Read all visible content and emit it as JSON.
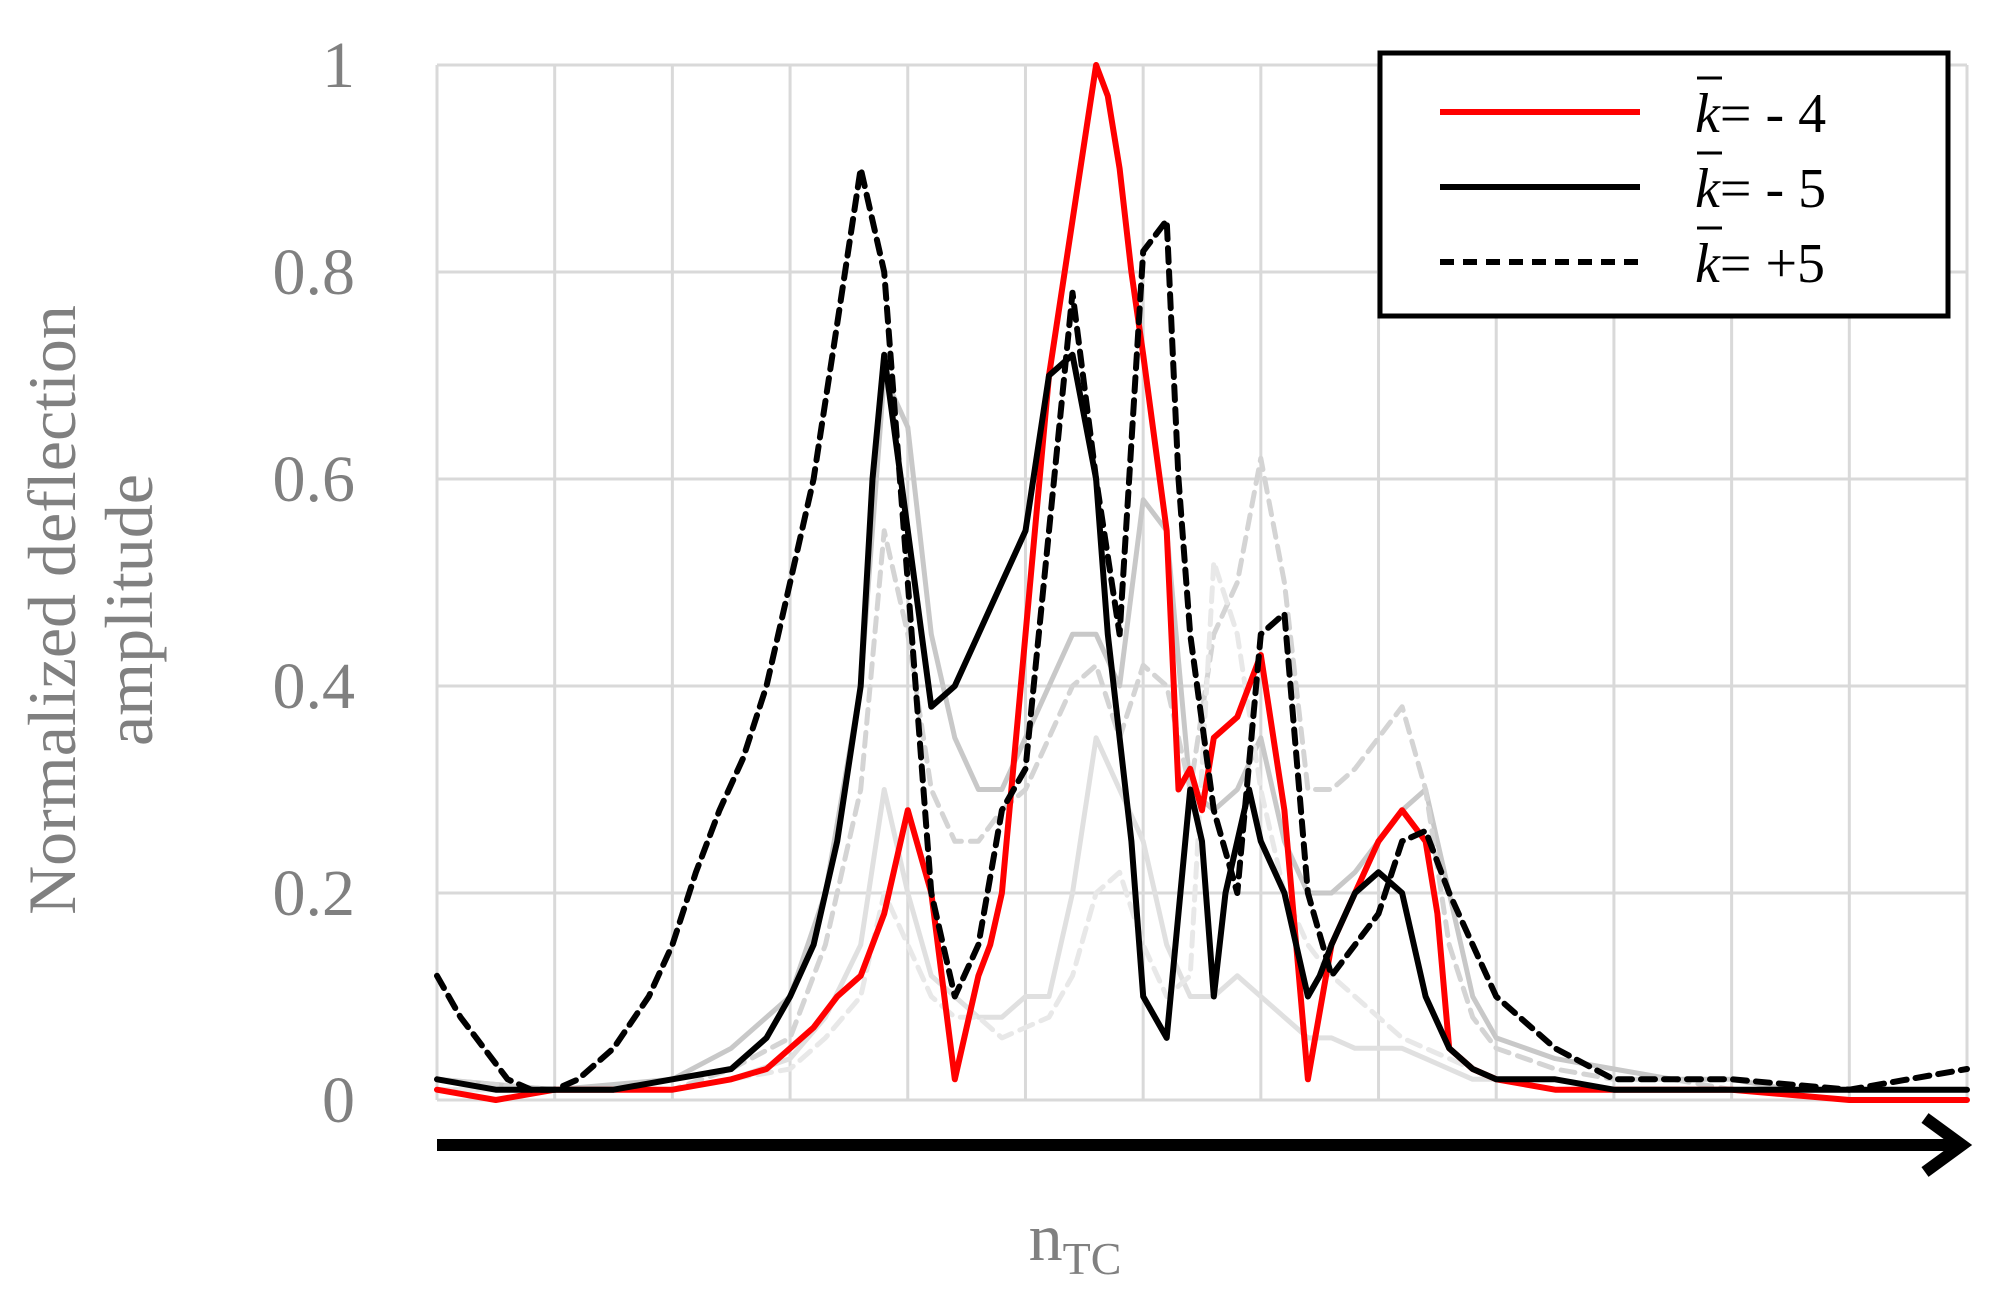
{
  "chart_data": {
    "type": "line",
    "title": "",
    "ylabel_lines": [
      "Normalized deflection",
      "amplitude"
    ],
    "xlabel_main": "n",
    "xlabel_sub": "TC",
    "ylim": [
      0,
      1
    ],
    "xlim": [
      0,
      130
    ],
    "yticks": [
      {
        "value": 0,
        "label": "0"
      },
      {
        "value": 0.2,
        "label": "0.2"
      },
      {
        "value": 0.4,
        "label": "0.4"
      },
      {
        "value": 0.6,
        "label": "0.6"
      },
      {
        "value": 0.8,
        "label": "0.8"
      },
      {
        "value": 1,
        "label": "1"
      }
    ],
    "grid": true,
    "x_gridlines": [
      0,
      10,
      20,
      30,
      40,
      50,
      60,
      70,
      80,
      90,
      100,
      110,
      120,
      130
    ],
    "legend_position": "top-right",
    "legend": [
      {
        "prefix": "k",
        "label": "= - 4",
        "color": "#ff0000",
        "dash": "solid"
      },
      {
        "prefix": "k",
        "label": "= - 5",
        "color": "#000000",
        "dash": "solid"
      },
      {
        "prefix": "k",
        "label": "= +5",
        "color": "#000000",
        "dash": "dashed"
      }
    ],
    "series": [
      {
        "color": "#c8c8c8",
        "dash": "solid",
        "width": 5,
        "x": [
          0,
          10,
          20,
          25,
          30,
          33,
          36,
          38,
          40,
          42,
          44,
          46,
          48,
          50,
          52,
          54,
          56,
          58,
          60,
          62,
          64,
          66,
          68,
          70,
          72,
          74,
          76,
          78,
          80,
          82,
          84,
          86,
          88,
          90,
          95,
          100,
          105,
          110,
          115,
          120,
          130
        ],
        "y": [
          0.02,
          0.01,
          0.02,
          0.05,
          0.1,
          0.2,
          0.4,
          0.7,
          0.65,
          0.45,
          0.35,
          0.3,
          0.3,
          0.35,
          0.4,
          0.45,
          0.45,
          0.4,
          0.58,
          0.55,
          0.3,
          0.28,
          0.3,
          0.35,
          0.25,
          0.2,
          0.2,
          0.22,
          0.25,
          0.28,
          0.3,
          0.2,
          0.1,
          0.06,
          0.04,
          0.03,
          0.02,
          0.02,
          0.01,
          0.01,
          0.01
        ]
      },
      {
        "color": "#d4d4d4",
        "dash": "dashed",
        "width": 5,
        "x": [
          0,
          10,
          20,
          25,
          30,
          33,
          36,
          38,
          40,
          42,
          44,
          46,
          48,
          50,
          52,
          54,
          56,
          58,
          60,
          62,
          64,
          66,
          68,
          70,
          72,
          74,
          76,
          78,
          80,
          82,
          84,
          86,
          88,
          90,
          95,
          100,
          105,
          110,
          115,
          120,
          130
        ],
        "y": [
          0.02,
          0.01,
          0.01,
          0.03,
          0.06,
          0.15,
          0.3,
          0.55,
          0.45,
          0.3,
          0.25,
          0.25,
          0.28,
          0.3,
          0.35,
          0.4,
          0.42,
          0.35,
          0.42,
          0.4,
          0.3,
          0.45,
          0.5,
          0.62,
          0.5,
          0.3,
          0.3,
          0.32,
          0.35,
          0.38,
          0.3,
          0.15,
          0.08,
          0.05,
          0.03,
          0.02,
          0.02,
          0.01,
          0.01,
          0.01,
          0.01
        ]
      },
      {
        "color": "#e0e0e0",
        "dash": "solid",
        "width": 5,
        "x": [
          0,
          10,
          20,
          25,
          30,
          33,
          36,
          38,
          40,
          42,
          44,
          46,
          48,
          50,
          52,
          54,
          56,
          58,
          60,
          62,
          64,
          66,
          68,
          70,
          72,
          74,
          76,
          78,
          80,
          82,
          84,
          86,
          88,
          90,
          95,
          100,
          105,
          110,
          115,
          120,
          130
        ],
        "y": [
          0.01,
          0.01,
          0.01,
          0.02,
          0.04,
          0.08,
          0.15,
          0.3,
          0.2,
          0.12,
          0.1,
          0.08,
          0.08,
          0.1,
          0.1,
          0.2,
          0.35,
          0.3,
          0.25,
          0.15,
          0.1,
          0.1,
          0.12,
          0.1,
          0.08,
          0.06,
          0.06,
          0.05,
          0.05,
          0.05,
          0.04,
          0.03,
          0.02,
          0.02,
          0.01,
          0.01,
          0.01,
          0.01,
          0.01,
          0.01,
          0.01
        ]
      },
      {
        "color": "#e8e8e8",
        "dash": "dashed",
        "width": 5,
        "x": [
          0,
          10,
          20,
          25,
          30,
          33,
          36,
          38,
          40,
          42,
          44,
          46,
          48,
          50,
          52,
          54,
          56,
          58,
          60,
          62,
          64,
          66,
          68,
          70,
          72,
          74,
          76,
          78,
          80,
          82,
          84,
          86,
          88,
          90,
          95,
          100,
          105,
          110,
          115,
          120,
          130
        ],
        "y": [
          0.01,
          0.01,
          0.01,
          0.02,
          0.03,
          0.06,
          0.1,
          0.2,
          0.15,
          0.1,
          0.08,
          0.08,
          0.06,
          0.07,
          0.08,
          0.12,
          0.2,
          0.22,
          0.15,
          0.1,
          0.12,
          0.52,
          0.45,
          0.3,
          0.2,
          0.15,
          0.12,
          0.1,
          0.08,
          0.06,
          0.05,
          0.04,
          0.03,
          0.02,
          0.01,
          0.01,
          0.01,
          0.01,
          0.01,
          0.01,
          0.01
        ]
      },
      {
        "color": "#ff0000",
        "dash": "solid",
        "width": 6,
        "x": [
          0,
          5,
          10,
          15,
          20,
          25,
          28,
          30,
          32,
          34,
          36,
          38,
          40,
          42,
          44,
          46,
          47,
          48,
          50,
          52,
          54,
          56,
          57,
          58,
          59,
          60,
          62,
          63,
          64,
          65,
          66,
          68,
          70,
          72,
          73,
          74,
          76,
          78,
          80,
          82,
          84,
          85,
          86,
          88,
          90,
          95,
          100,
          110,
          120,
          130
        ],
        "y": [
          0.01,
          0.0,
          0.01,
          0.01,
          0.01,
          0.02,
          0.03,
          0.05,
          0.07,
          0.1,
          0.12,
          0.18,
          0.28,
          0.2,
          0.02,
          0.12,
          0.15,
          0.2,
          0.45,
          0.7,
          0.85,
          1.0,
          0.97,
          0.9,
          0.8,
          0.72,
          0.55,
          0.3,
          0.32,
          0.28,
          0.35,
          0.37,
          0.43,
          0.28,
          0.15,
          0.02,
          0.15,
          0.2,
          0.25,
          0.28,
          0.25,
          0.18,
          0.05,
          0.03,
          0.02,
          0.01,
          0.01,
          0.01,
          0.0,
          0.0
        ]
      },
      {
        "color": "#000000",
        "dash": "solid",
        "width": 6,
        "x": [
          0,
          5,
          10,
          15,
          20,
          25,
          28,
          30,
          32,
          34,
          36,
          37,
          38,
          40,
          42,
          44,
          46,
          48,
          50,
          52,
          54,
          56,
          57,
          58,
          59,
          60,
          62,
          64,
          65,
          66,
          67,
          68,
          69,
          70,
          72,
          74,
          75,
          76,
          78,
          80,
          82,
          84,
          86,
          88,
          90,
          95,
          100,
          110,
          120,
          130
        ],
        "y": [
          0.02,
          0.01,
          0.01,
          0.01,
          0.02,
          0.03,
          0.06,
          0.1,
          0.15,
          0.25,
          0.4,
          0.6,
          0.72,
          0.55,
          0.38,
          0.4,
          0.45,
          0.5,
          0.55,
          0.7,
          0.72,
          0.6,
          0.45,
          0.35,
          0.25,
          0.1,
          0.06,
          0.3,
          0.25,
          0.1,
          0.2,
          0.25,
          0.3,
          0.25,
          0.2,
          0.1,
          0.12,
          0.15,
          0.2,
          0.22,
          0.2,
          0.1,
          0.05,
          0.03,
          0.02,
          0.02,
          0.01,
          0.01,
          0.01,
          0.01
        ]
      },
      {
        "color": "#000000",
        "dash": "dashed",
        "width": 6,
        "x": [
          0,
          2,
          4,
          6,
          8,
          10,
          12,
          15,
          18,
          20,
          22,
          24,
          26,
          28,
          30,
          32,
          34,
          36,
          38,
          40,
          42,
          44,
          46,
          48,
          50,
          52,
          54,
          56,
          58,
          60,
          62,
          63,
          64,
          66,
          68,
          70,
          72,
          74,
          76,
          78,
          80,
          82,
          84,
          86,
          88,
          90,
          95,
          100,
          110,
          120,
          130
        ],
        "y": [
          0.12,
          0.08,
          0.05,
          0.02,
          0.01,
          0.01,
          0.02,
          0.05,
          0.1,
          0.15,
          0.22,
          0.28,
          0.33,
          0.4,
          0.5,
          0.6,
          0.75,
          0.9,
          0.8,
          0.5,
          0.2,
          0.1,
          0.15,
          0.28,
          0.32,
          0.55,
          0.78,
          0.6,
          0.45,
          0.82,
          0.85,
          0.6,
          0.45,
          0.28,
          0.2,
          0.45,
          0.47,
          0.2,
          0.12,
          0.15,
          0.18,
          0.25,
          0.26,
          0.2,
          0.15,
          0.1,
          0.05,
          0.02,
          0.02,
          0.01,
          0.03
        ]
      }
    ]
  }
}
